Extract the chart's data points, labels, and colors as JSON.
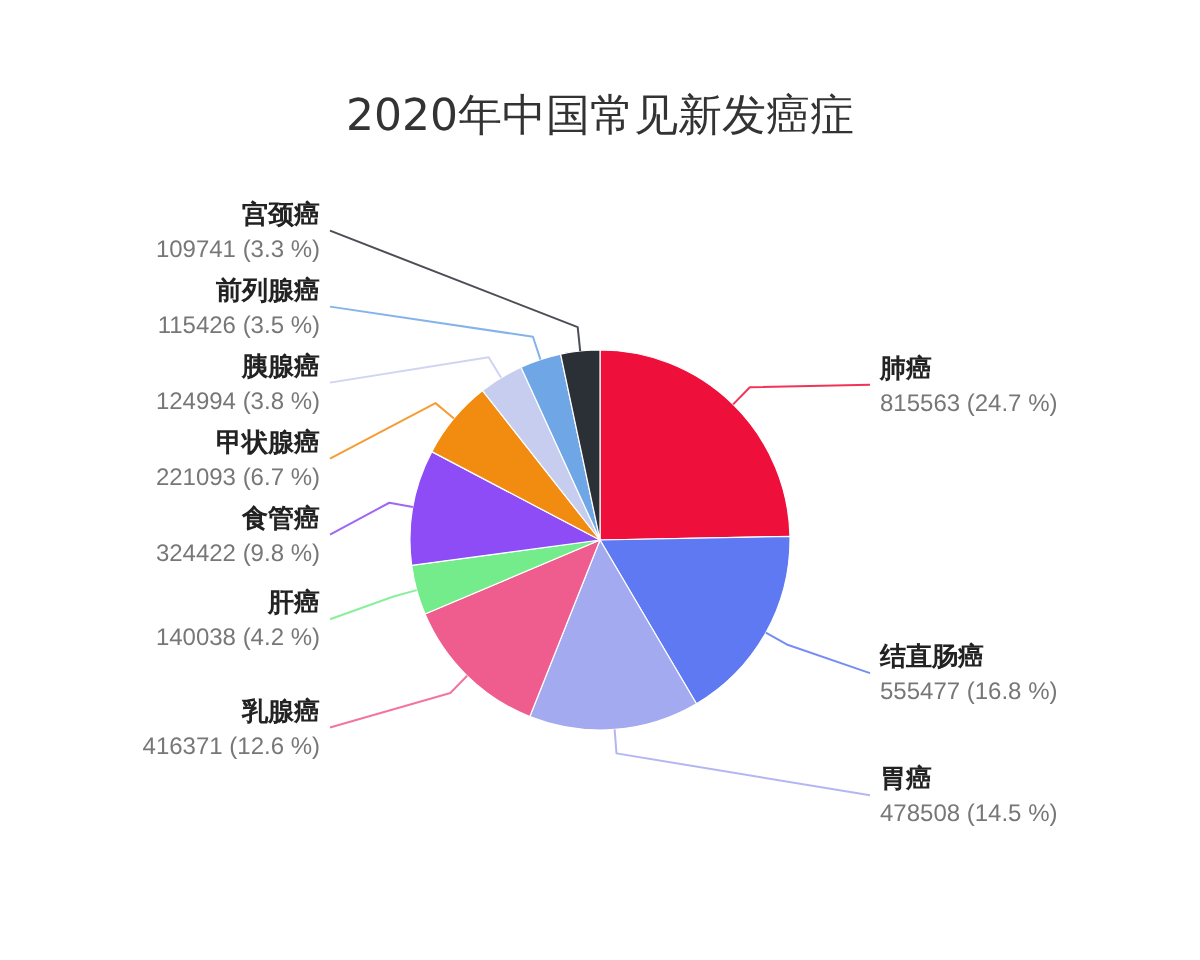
{
  "chart_data": {
    "type": "pie",
    "title": "2020年中国常见新发癌症",
    "categories": [
      "肺癌",
      "结直肠癌",
      "胃癌",
      "乳腺癌",
      "肝癌",
      "食管癌",
      "甲状腺癌",
      "胰腺癌",
      "前列腺癌",
      "宫颈癌"
    ],
    "values": [
      815563,
      555477,
      478508,
      416371,
      140038,
      324422,
      221093,
      124994,
      115426,
      109741
    ],
    "value_labels": [
      "815563 (24.7 %)",
      "555477 (16.8 %)",
      "478508 (14.5 %)",
      "416371 (12.6 %)",
      "140038 (4.2 %)",
      "324422 (9.8 %)",
      "221093 (6.7 %)",
      "124994 (3.8 %)",
      "115426 (3.5 %)",
      "109741 (3.3 %)"
    ],
    "colors": [
      "#ee0f3b",
      "#5e79f2",
      "#a4aaf0",
      "#ef5d8f",
      "#74ec8c",
      "#8d4cf5",
      "#f28c10",
      "#c7cdef",
      "#6fa6e6",
      "#2b2f36"
    ]
  }
}
